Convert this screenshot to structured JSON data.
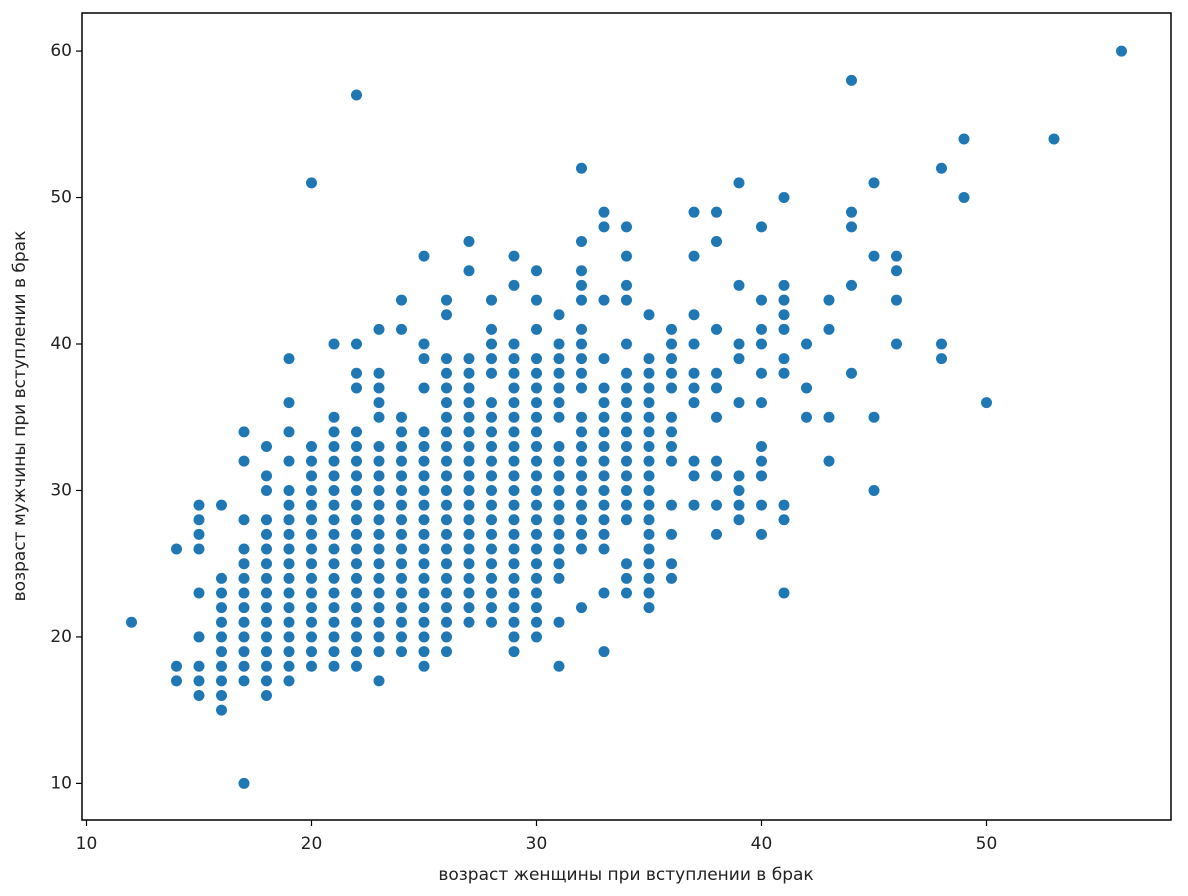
{
  "chart_data": {
    "type": "scatter",
    "xlabel": "возраст женщины при вступлении в брак",
    "ylabel": "возраст мужчины при вступлении в брак",
    "xlim": [
      9.8,
      58.2
    ],
    "ylim": [
      7.5,
      62.6
    ],
    "xticks": [
      10,
      20,
      30,
      40,
      50
    ],
    "yticks": [
      10,
      20,
      30,
      40,
      50,
      60
    ],
    "color": "#1f77b4",
    "x": [
      12,
      14,
      14,
      14,
      15,
      15,
      15,
      15,
      15,
      15,
      15,
      15,
      15,
      16,
      16,
      16,
      16,
      16,
      16,
      16,
      16,
      16,
      16,
      16,
      17,
      17,
      17,
      17,
      17,
      17,
      17,
      17,
      17,
      17,
      17,
      17,
      17,
      17,
      18,
      18,
      18,
      18,
      18,
      18,
      18,
      18,
      18,
      18,
      18,
      18,
      18,
      18,
      18,
      18,
      19,
      19,
      19,
      19,
      19,
      19,
      19,
      19,
      19,
      19,
      19,
      19,
      19,
      19,
      19,
      19,
      19,
      19,
      20,
      20,
      20,
      20,
      20,
      20,
      20,
      20,
      20,
      20,
      20,
      20,
      20,
      20,
      20,
      20,
      20,
      21,
      21,
      21,
      21,
      21,
      21,
      21,
      21,
      21,
      21,
      21,
      21,
      21,
      21,
      21,
      21,
      21,
      21,
      21,
      22,
      22,
      22,
      22,
      22,
      22,
      22,
      22,
      22,
      22,
      22,
      22,
      22,
      22,
      22,
      22,
      22,
      22,
      22,
      22,
      22,
      23,
      23,
      23,
      23,
      23,
      23,
      23,
      23,
      23,
      23,
      23,
      23,
      23,
      23,
      23,
      23,
      23,
      23,
      23,
      23,
      23,
      24,
      24,
      24,
      24,
      24,
      24,
      24,
      24,
      24,
      24,
      24,
      24,
      24,
      24,
      24,
      24,
      24,
      24,
      24,
      25,
      25,
      25,
      25,
      25,
      25,
      25,
      25,
      25,
      25,
      25,
      25,
      25,
      25,
      25,
      25,
      25,
      25,
      25,
      25,
      25,
      26,
      26,
      26,
      26,
      26,
      26,
      26,
      26,
      26,
      26,
      26,
      26,
      26,
      26,
      26,
      26,
      26,
      26,
      26,
      26,
      26,
      26,
      26,
      27,
      27,
      27,
      27,
      27,
      27,
      27,
      27,
      27,
      27,
      27,
      27,
      27,
      27,
      27,
      27,
      27,
      27,
      27,
      27,
      27,
      28,
      28,
      28,
      28,
      28,
      28,
      28,
      28,
      28,
      28,
      28,
      28,
      28,
      28,
      28,
      28,
      28,
      28,
      28,
      28,
      28,
      29,
      29,
      29,
      29,
      29,
      29,
      29,
      29,
      29,
      29,
      29,
      29,
      29,
      29,
      29,
      29,
      29,
      29,
      29,
      29,
      29,
      29,
      29,
      29,
      30,
      30,
      30,
      30,
      30,
      30,
      30,
      30,
      30,
      30,
      30,
      30,
      30,
      30,
      30,
      30,
      30,
      30,
      30,
      30,
      30,
      30,
      30,
      31,
      31,
      31,
      31,
      31,
      31,
      31,
      31,
      31,
      31,
      31,
      31,
      31,
      31,
      31,
      31,
      31,
      31,
      31,
      32,
      32,
      32,
      32,
      32,
      32,
      32,
      32,
      32,
      32,
      32,
      32,
      32,
      32,
      32,
      32,
      32,
      32,
      32,
      32,
      32,
      33,
      33,
      33,
      33,
      33,
      33,
      33,
      33,
      33,
      33,
      33,
      33,
      33,
      33,
      33,
      33,
      33,
      33,
      34,
      34,
      34,
      34,
      34,
      34,
      34,
      34,
      34,
      34,
      34,
      34,
      34,
      34,
      34,
      34,
      34,
      34,
      34,
      35,
      35,
      35,
      35,
      35,
      35,
      35,
      35,
      35,
      35,
      35,
      35,
      35,
      35,
      35,
      35,
      35,
      35,
      35,
      36,
      36,
      36,
      36,
      36,
      36,
      36,
      36,
      36,
      36,
      36,
      36,
      36,
      37,
      37,
      37,
      37,
      37,
      37,
      37,
      37,
      37,
      37,
      38,
      38,
      38,
      38,
      38,
      38,
      38,
      38,
      38,
      38,
      39,
      39,
      39,
      39,
      39,
      39,
      39,
      39,
      39,
      40,
      40,
      40,
      40,
      40,
      40,
      40,
      40,
      40,
      40,
      40,
      41,
      41,
      41,
      41,
      41,
      41,
      41,
      41,
      41,
      41,
      42,
      42,
      42,
      43,
      43,
      43,
      43,
      44,
      44,
      44,
      44,
      44,
      45,
      45,
      45,
      45,
      46,
      46,
      46,
      46,
      48,
      48,
      48,
      49,
      49,
      50,
      53,
      56
    ],
    "values": [
      21,
      26,
      18,
      17,
      29,
      28,
      27,
      26,
      23,
      20,
      18,
      17,
      16,
      29,
      24,
      23,
      22,
      21,
      20,
      19,
      18,
      17,
      16,
      15,
      34,
      32,
      28,
      26,
      25,
      24,
      23,
      22,
      21,
      20,
      19,
      18,
      17,
      10,
      33,
      31,
      30,
      28,
      27,
      26,
      25,
      24,
      23,
      22,
      21,
      20,
      19,
      18,
      17,
      16,
      39,
      36,
      34,
      32,
      30,
      29,
      28,
      27,
      26,
      25,
      24,
      23,
      22,
      21,
      20,
      19,
      18,
      17,
      51,
      33,
      32,
      31,
      30,
      29,
      28,
      27,
      26,
      25,
      24,
      23,
      22,
      21,
      20,
      19,
      18,
      40,
      35,
      34,
      33,
      32,
      31,
      30,
      29,
      28,
      27,
      26,
      25,
      24,
      23,
      22,
      21,
      20,
      19,
      18,
      57,
      40,
      38,
      37,
      34,
      33,
      32,
      31,
      30,
      29,
      28,
      27,
      26,
      25,
      24,
      23,
      22,
      21,
      20,
      19,
      18,
      41,
      38,
      37,
      36,
      35,
      33,
      32,
      31,
      30,
      29,
      28,
      27,
      26,
      25,
      24,
      23,
      22,
      21,
      20,
      19,
      17,
      43,
      41,
      35,
      34,
      33,
      32,
      31,
      30,
      29,
      28,
      27,
      26,
      25,
      24,
      23,
      22,
      21,
      20,
      19,
      46,
      40,
      39,
      37,
      34,
      33,
      32,
      31,
      30,
      29,
      28,
      27,
      26,
      25,
      24,
      23,
      22,
      21,
      20,
      19,
      18,
      43,
      42,
      39,
      38,
      37,
      36,
      35,
      34,
      33,
      32,
      31,
      30,
      29,
      28,
      27,
      26,
      25,
      24,
      23,
      22,
      21,
      20,
      19,
      47,
      45,
      39,
      38,
      37,
      36,
      35,
      34,
      33,
      32,
      31,
      30,
      29,
      28,
      27,
      26,
      25,
      24,
      23,
      22,
      21,
      43,
      41,
      40,
      39,
      38,
      36,
      35,
      34,
      33,
      32,
      31,
      30,
      29,
      28,
      27,
      26,
      25,
      24,
      23,
      22,
      21,
      46,
      44,
      40,
      39,
      38,
      37,
      36,
      35,
      34,
      33,
      32,
      31,
      30,
      29,
      28,
      27,
      26,
      25,
      24,
      23,
      22,
      21,
      20,
      19,
      45,
      43,
      41,
      39,
      38,
      37,
      36,
      35,
      34,
      33,
      32,
      31,
      30,
      29,
      28,
      27,
      26,
      25,
      24,
      23,
      22,
      21,
      20,
      42,
      40,
      39,
      38,
      37,
      36,
      35,
      33,
      32,
      31,
      30,
      29,
      28,
      27,
      26,
      25,
      24,
      21,
      18,
      52,
      47,
      45,
      44,
      43,
      41,
      40,
      39,
      38,
      37,
      35,
      34,
      33,
      32,
      31,
      30,
      29,
      28,
      27,
      26,
      22,
      49,
      48,
      43,
      39,
      37,
      36,
      35,
      34,
      33,
      32,
      31,
      30,
      29,
      28,
      27,
      26,
      23,
      19,
      48,
      46,
      44,
      43,
      40,
      38,
      37,
      36,
      35,
      34,
      33,
      32,
      31,
      30,
      29,
      28,
      25,
      24,
      23,
      42,
      39,
      38,
      37,
      36,
      35,
      34,
      33,
      32,
      31,
      30,
      29,
      28,
      27,
      26,
      25,
      24,
      23,
      22,
      41,
      40,
      39,
      38,
      37,
      35,
      34,
      33,
      32,
      29,
      27,
      25,
      24,
      49,
      46,
      42,
      40,
      38,
      37,
      36,
      32,
      31,
      29,
      49,
      47,
      41,
      38,
      37,
      35,
      32,
      31,
      29,
      27,
      51,
      44,
      40,
      39,
      36,
      31,
      30,
      29,
      28,
      48,
      43,
      41,
      40,
      38,
      36,
      33,
      32,
      31,
      29,
      27,
      50,
      44,
      43,
      42,
      41,
      39,
      38,
      29,
      28,
      23,
      40,
      37,
      35,
      43,
      41,
      35,
      32,
      58,
      49,
      48,
      44,
      38,
      51,
      46,
      35,
      30,
      46,
      45,
      43,
      40,
      52,
      40,
      39,
      54,
      50,
      36,
      54,
      60
    ]
  }
}
